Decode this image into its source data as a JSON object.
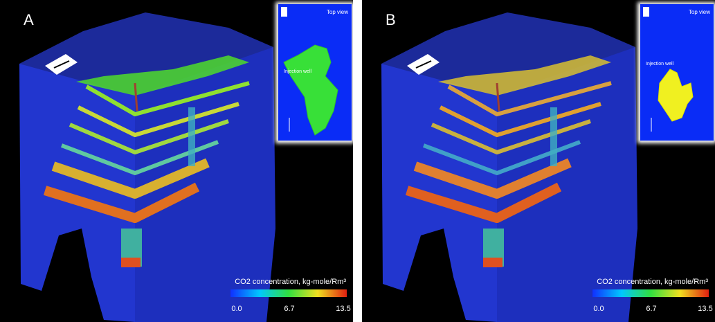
{
  "panels": [
    {
      "label": "A",
      "inset": {
        "title": "Top view",
        "annotation": "Injection well"
      },
      "colorbar": {
        "title": "CO2 concentration, kg-mole/Rm³",
        "ticks": [
          "0.0",
          "6.7",
          "13.5"
        ]
      }
    },
    {
      "label": "B",
      "inset": {
        "title": "Top view",
        "annotation": "Injection well"
      },
      "colorbar": {
        "title": "CO2 concentration, kg-mole/Rm³",
        "ticks": [
          "0.0",
          "6.7",
          "13.5"
        ]
      }
    }
  ]
}
